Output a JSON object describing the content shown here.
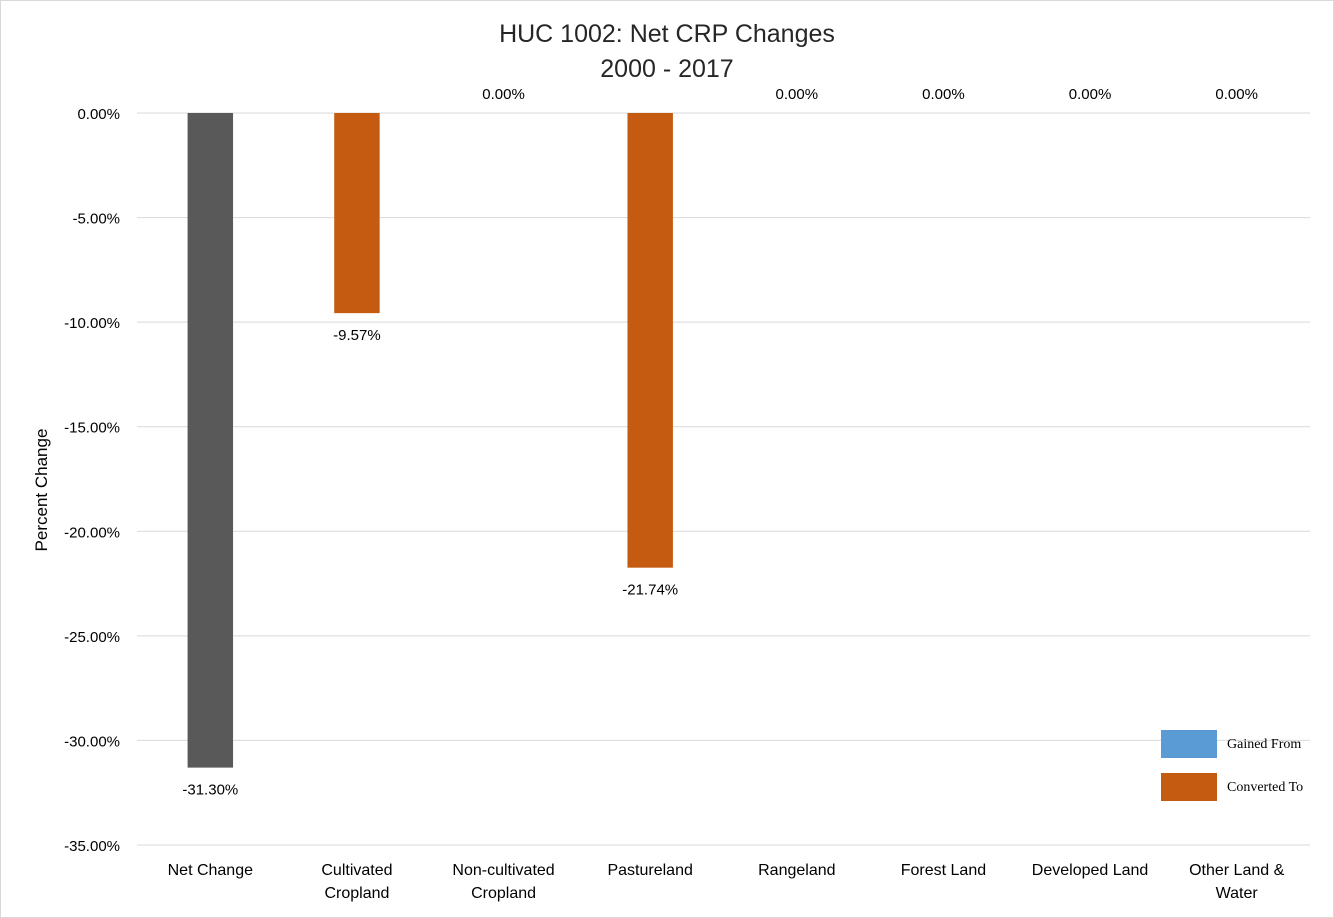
{
  "chart_data": {
    "type": "bar",
    "title": "HUC 1002: Net CRP Changes",
    "subtitle": "2000 - 2017",
    "xlabel": "",
    "ylabel": "Percent Change",
    "ylim": [
      -35,
      0
    ],
    "yticks": [
      0,
      -5,
      -10,
      -15,
      -20,
      -25,
      -30,
      -35
    ],
    "ytick_labels": [
      "0.00%",
      "-5.00%",
      "-10.00%",
      "-15.00%",
      "-20.00%",
      "-25.00%",
      "-30.00%",
      "-35.00%"
    ],
    "grid": true,
    "legend_position": "bottom-right",
    "categories": [
      [
        "Net Change"
      ],
      [
        "Cultivated",
        "Cropland"
      ],
      [
        "Non-cultivated",
        "Cropland"
      ],
      [
        "Pastureland"
      ],
      [
        "Rangeland"
      ],
      [
        "Forest Land"
      ],
      [
        "Developed Land"
      ],
      [
        "Other Land &",
        "Water"
      ]
    ],
    "values": [
      -31.3,
      -9.57,
      0.0,
      -21.74,
      0.0,
      0.0,
      0.0,
      0.0
    ],
    "data_labels": [
      "-31.30%",
      "-9.57%",
      "0.00%",
      "-21.74%",
      "0.00%",
      "0.00%",
      "0.00%",
      "0.00%"
    ],
    "bar_colors": [
      "#595959",
      "#c55a11",
      "#c55a11",
      "#c55a11",
      "#c55a11",
      "#c55a11",
      "#c55a11",
      "#c55a11"
    ],
    "legend": [
      {
        "name": "Gained From",
        "color": "#5b9bd5"
      },
      {
        "name": "Converted To",
        "color": "#c55a11"
      }
    ]
  }
}
